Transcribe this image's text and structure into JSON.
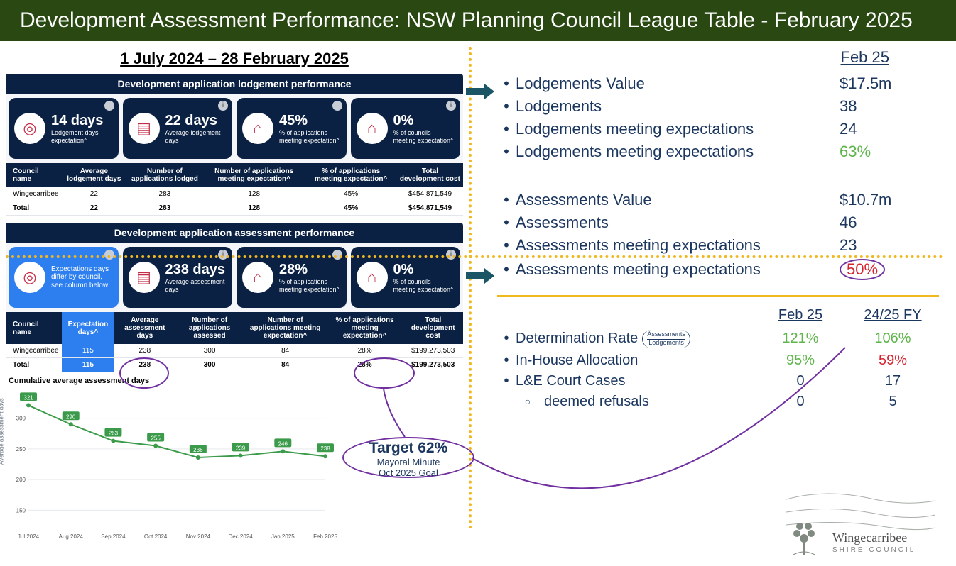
{
  "title": "Development Assessment Performance: NSW Planning Council League Table - February 2025",
  "date_range": "1 July 2024 – 28 February 2025",
  "colors": {
    "header_bg": "#2a4912",
    "navy": "#0a2144",
    "blue_hl": "#2d7ff0",
    "gold": "#f0b71f",
    "green": "#5eb54a",
    "red": "#d6232f",
    "text_navy": "#1b365f",
    "purple": "#7030a0",
    "chart_line": "#3b9b4a",
    "bg": "#ffffff"
  },
  "lodgement_panel": {
    "header": "Development application lodgement performance",
    "kpi": [
      {
        "value": "14 days",
        "sub": "Lodgement days expectation^"
      },
      {
        "value": "22 days",
        "sub": "Average lodgement days"
      },
      {
        "value": "45%",
        "sub": "% of applications meeting expectation^"
      },
      {
        "value": "0%",
        "sub": "% of councils meeting expectation^"
      }
    ],
    "table": {
      "columns": [
        "Council name",
        "Average lodgement days",
        "Number of applications lodged",
        "Number of applications meeting expectation^",
        "% of applications meeting expectation^",
        "Total development cost"
      ],
      "rows": [
        [
          "Wingecarribee",
          "22",
          "283",
          "128",
          "45%",
          "$454,871,549"
        ],
        [
          "Total",
          "22",
          "283",
          "128",
          "45%",
          "$454,871,549"
        ]
      ]
    }
  },
  "assessment_panel": {
    "header": "Development application assessment performance",
    "kpi": [
      {
        "value": "",
        "sub": "Expectations days differ by council, see column below"
      },
      {
        "value": "238 days",
        "sub": "Average assessment days"
      },
      {
        "value": "28%",
        "sub": "% of applications meeting expectation^"
      },
      {
        "value": "0%",
        "sub": "% of councils meeting expectation^"
      }
    ],
    "table": {
      "columns": [
        "Council name",
        "Expectation days^",
        "Average assessment days",
        "Number of applications assessed",
        "Number of applications meeting expectation^",
        "% of applications meeting expectation^",
        "Total development cost"
      ],
      "rows": [
        [
          "Wingecarribee",
          "115",
          "238",
          "300",
          "84",
          "28%",
          "$199,273,503"
        ],
        [
          "Total",
          "115",
          "238",
          "300",
          "84",
          "28%",
          "$199,273,503"
        ]
      ]
    }
  },
  "chart": {
    "title": "Cumulative average assessment days",
    "type": "line",
    "x_labels": [
      "Jul 2024",
      "Aug 2024",
      "Sep 2024",
      "Oct 2024",
      "Nov 2024",
      "Dec 2024",
      "Jan 2025",
      "Feb 2025"
    ],
    "values": [
      321,
      290,
      263,
      255,
      236,
      239,
      246,
      238
    ],
    "ylim": [
      125,
      340
    ],
    "yticks": [
      150,
      200,
      250,
      300
    ],
    "line_color": "#3b9b4a",
    "point_label_bg": "#3b9b4a",
    "point_label_color": "#ffffff",
    "grid_color": "#e6e9ee",
    "xlabel_fontsize": 8
  },
  "right_top_header": "Feb 25",
  "lodgement_stats": [
    {
      "label": "Lodgements Value",
      "value": "$17.5m",
      "class": ""
    },
    {
      "label": "Lodgements",
      "value": "38",
      "class": ""
    },
    {
      "label": "Lodgements meeting expectations",
      "value": "24",
      "class": ""
    },
    {
      "label": "Lodgements meeting expectations",
      "value": "63%",
      "class": "green"
    }
  ],
  "assessment_stats": [
    {
      "label": "Assessments Value",
      "value": "$10.7m",
      "class": ""
    },
    {
      "label": "Assessments",
      "value": "46",
      "class": ""
    },
    {
      "label": "Assessments meeting expectations",
      "value": "23",
      "class": ""
    },
    {
      "label": "Assessments meeting expectations",
      "value": "50%",
      "class": "red circle"
    }
  ],
  "det_header": {
    "c2": "Feb 25",
    "c3": "24/25 FY"
  },
  "det_rows": [
    {
      "label": "Determination Rate",
      "frac_top": "Assessments",
      "frac_bot": "Lodgements",
      "v1": "121%",
      "v1_class": "green",
      "v2": "106%",
      "v2_class": "green"
    },
    {
      "label": "In-House Allocation",
      "v1": "95%",
      "v1_class": "green",
      "v2": "59%",
      "v2_class": "red"
    },
    {
      "label": "L&E Court Cases",
      "v1": "0",
      "v1_class": "",
      "v2": "17",
      "v2_class": ""
    },
    {
      "label": "deemed refusals",
      "sub": true,
      "v1": "0",
      "v1_class": "",
      "v2": "5",
      "v2_class": ""
    }
  ],
  "target": {
    "main": "Target 62%",
    "sub1": "Mayoral Minute",
    "sub2": "Oct 2025 Goal"
  },
  "logo": {
    "name": "Wingecarribee",
    "sub": "SHIRE COUNCIL"
  }
}
